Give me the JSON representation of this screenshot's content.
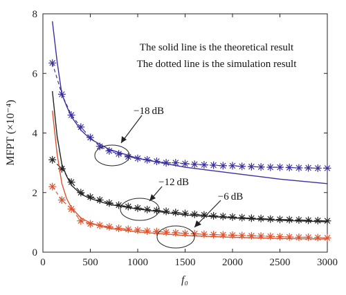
{
  "chart_data": {
    "type": "line",
    "xlabel": "f₀",
    "ylabel": "MFPT (×10⁻⁴)",
    "xlim": [
      0,
      3000
    ],
    "ylim": [
      0,
      8
    ],
    "x_ticks": [
      "0",
      "500",
      "1000",
      "1500",
      "2000",
      "2500",
      "3000"
    ],
    "y_ticks": [
      "0",
      "2",
      "4",
      "6",
      "8"
    ],
    "grid": false,
    "notes": [
      "The solid line is the theoretical result",
      "The dotted line is the simulation result"
    ],
    "annotations": [
      {
        "text": "−18 dB",
        "target_series": 0
      },
      {
        "text": "−12 dB",
        "target_series": 1
      },
      {
        "text": "−6 dB",
        "target_series": 2
      }
    ],
    "series": [
      {
        "color": "#3a2fa0",
        "theory": {
          "x": [
            100,
            150,
            200,
            250,
            300,
            400,
            500,
            700,
            1000,
            1500,
            2000,
            2500,
            3000
          ],
          "y": [
            7.75,
            6.4,
            5.3,
            4.9,
            4.55,
            4.1,
            3.8,
            3.45,
            3.15,
            2.85,
            2.65,
            2.45,
            2.3
          ]
        },
        "simulation": {
          "x": [
            100,
            200,
            300,
            400,
            500,
            600,
            700,
            800,
            900,
            1000,
            1100,
            1200,
            1300,
            1400,
            1500,
            1600,
            1700,
            1800,
            1900,
            2000,
            2100,
            2200,
            2300,
            2400,
            2500,
            2600,
            2700,
            2800,
            2900,
            3000
          ],
          "y": [
            6.35,
            5.3,
            4.6,
            4.2,
            3.85,
            3.55,
            3.4,
            3.3,
            3.2,
            3.15,
            3.1,
            3.05,
            3.0,
            3.0,
            2.97,
            2.95,
            2.93,
            2.92,
            2.9,
            2.9,
            2.88,
            2.87,
            2.86,
            2.85,
            2.85,
            2.84,
            2.83,
            2.83,
            2.82,
            2.82
          ]
        }
      },
      {
        "color": "#222222",
        "theory": {
          "x": [
            100,
            150,
            200,
            250,
            300,
            400,
            500,
            700,
            1000,
            1500,
            2000,
            2500,
            3000
          ],
          "y": [
            5.4,
            3.9,
            2.95,
            2.55,
            2.25,
            1.95,
            1.8,
            1.6,
            1.45,
            1.25,
            1.15,
            1.07,
            1.02
          ]
        },
        "simulation": {
          "x": [
            100,
            200,
            300,
            400,
            500,
            600,
            700,
            800,
            900,
            1000,
            1100,
            1200,
            1300,
            1400,
            1500,
            1600,
            1700,
            1800,
            1900,
            2000,
            2100,
            2200,
            2300,
            2400,
            2500,
            2600,
            2700,
            2800,
            2900,
            3000
          ],
          "y": [
            3.1,
            2.8,
            2.35,
            2.0,
            1.85,
            1.75,
            1.65,
            1.58,
            1.53,
            1.48,
            1.43,
            1.4,
            1.37,
            1.33,
            1.3,
            1.27,
            1.25,
            1.22,
            1.2,
            1.18,
            1.16,
            1.14,
            1.13,
            1.11,
            1.1,
            1.09,
            1.08,
            1.07,
            1.06,
            1.05
          ]
        }
      },
      {
        "color": "#e0502a",
        "theory": {
          "x": [
            100,
            150,
            200,
            250,
            300,
            400,
            500,
            700,
            1000,
            1500,
            2000,
            2500,
            3000
          ],
          "y": [
            4.75,
            3.3,
            2.3,
            1.8,
            1.5,
            1.15,
            0.98,
            0.8,
            0.68,
            0.56,
            0.5,
            0.46,
            0.44
          ]
        },
        "simulation": {
          "x": [
            100,
            200,
            300,
            400,
            500,
            600,
            700,
            800,
            900,
            1000,
            1100,
            1200,
            1300,
            1400,
            1500,
            1600,
            1700,
            1800,
            1900,
            2000,
            2100,
            2200,
            2300,
            2400,
            2500,
            2600,
            2700,
            2800,
            2900,
            3000
          ],
          "y": [
            2.2,
            1.75,
            1.45,
            1.05,
            0.95,
            0.9,
            0.85,
            0.8,
            0.77,
            0.74,
            0.71,
            0.69,
            0.67,
            0.65,
            0.63,
            0.62,
            0.6,
            0.59,
            0.58,
            0.57,
            0.56,
            0.55,
            0.54,
            0.53,
            0.52,
            0.51,
            0.5,
            0.5,
            0.49,
            0.48
          ]
        }
      }
    ]
  }
}
